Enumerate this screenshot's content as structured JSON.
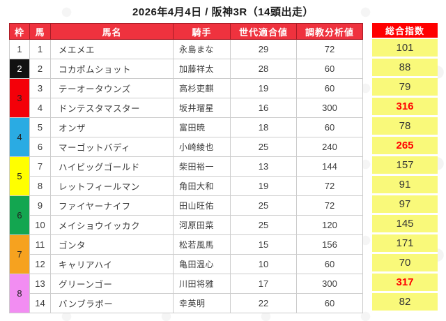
{
  "title": "2026年4月4日 / 阪神3R（14頭出走）",
  "columns": [
    "枠",
    "馬",
    "馬名",
    "騎手",
    "世代適合値",
    "調教分析値",
    "総合指数"
  ],
  "theme": {
    "header-bg": "#ef323e",
    "header-border": "#a81c26",
    "sogo-header-bg": "#ff0000",
    "sogo-cell-bg": "#f9f97a",
    "cell-border": "#cccccc",
    "text": "#3c3c3c",
    "hot": "#ff0000"
  },
  "rows": [
    {
      "num": "1",
      "name": "メエメエ",
      "jockey": "永島まな",
      "sedai": "29",
      "chokyo": "72",
      "sogo": "101",
      "hot": false,
      "waku": {
        "label": "1",
        "span": 1,
        "bg": "#ffffff",
        "fg": "#333333"
      }
    },
    {
      "num": "2",
      "name": "コカポムショット",
      "jockey": "加藤祥太",
      "sedai": "28",
      "chokyo": "60",
      "sogo": "88",
      "hot": false,
      "waku": {
        "label": "2",
        "span": 1,
        "bg": "#111111",
        "fg": "#ffffff"
      }
    },
    {
      "num": "3",
      "name": "テーオータウンズ",
      "jockey": "高杉吏麒",
      "sedai": "19",
      "chokyo": "60",
      "sogo": "79",
      "hot": false,
      "waku": {
        "label": "3",
        "span": 2,
        "bg": "#f40009",
        "fg": "#222222"
      }
    },
    {
      "num": "4",
      "name": "ドンテスタマスター",
      "jockey": "坂井瑠星",
      "sedai": "16",
      "chokyo": "300",
      "sogo": "316",
      "hot": true
    },
    {
      "num": "5",
      "name": "オンザ",
      "jockey": "富田暁",
      "sedai": "18",
      "chokyo": "60",
      "sogo": "78",
      "hot": false,
      "waku": {
        "label": "4",
        "span": 2,
        "bg": "#2aabe3",
        "fg": "#222222"
      }
    },
    {
      "num": "6",
      "name": "マーゴットバディ",
      "jockey": "小崎綾也",
      "sedai": "25",
      "chokyo": "240",
      "sogo": "265",
      "hot": true
    },
    {
      "num": "7",
      "name": "ハイビッグゴールド",
      "jockey": "柴田裕一",
      "sedai": "13",
      "chokyo": "144",
      "sogo": "157",
      "hot": false,
      "waku": {
        "label": "5",
        "span": 2,
        "bg": "#ffff00",
        "fg": "#222222"
      }
    },
    {
      "num": "8",
      "name": "レットフィールマン",
      "jockey": "角田大和",
      "sedai": "19",
      "chokyo": "72",
      "sogo": "91",
      "hot": false
    },
    {
      "num": "9",
      "name": "ファイヤーナイフ",
      "jockey": "田山旺佑",
      "sedai": "25",
      "chokyo": "72",
      "sogo": "97",
      "hot": false,
      "waku": {
        "label": "6",
        "span": 2,
        "bg": "#13a650",
        "fg": "#222222"
      }
    },
    {
      "num": "10",
      "name": "メイショウイッカク",
      "jockey": "河原田菜",
      "sedai": "25",
      "chokyo": "120",
      "sogo": "145",
      "hot": false
    },
    {
      "num": "11",
      "name": "ゴンタ",
      "jockey": "松若風馬",
      "sedai": "15",
      "chokyo": "156",
      "sogo": "171",
      "hot": false,
      "waku": {
        "label": "7",
        "span": 2,
        "bg": "#f6a21f",
        "fg": "#222222"
      }
    },
    {
      "num": "12",
      "name": "キャリアハイ",
      "jockey": "亀田温心",
      "sedai": "10",
      "chokyo": "60",
      "sogo": "70",
      "hot": false
    },
    {
      "num": "13",
      "name": "グリーンゴー",
      "jockey": "川田将雅",
      "sedai": "17",
      "chokyo": "300",
      "sogo": "317",
      "hot": true,
      "waku": {
        "label": "8",
        "span": 2,
        "bg": "#f28df2",
        "fg": "#222222"
      }
    },
    {
      "num": "14",
      "name": "バンブラボー",
      "jockey": "幸英明",
      "sedai": "22",
      "chokyo": "60",
      "sogo": "82",
      "hot": false
    }
  ]
}
